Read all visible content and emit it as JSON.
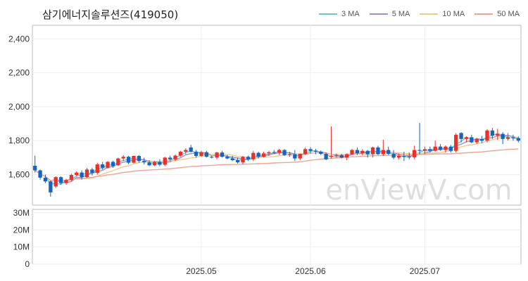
{
  "chart_data": {
    "type": "candlestick",
    "title": "삼기에너지솔루션즈(419050)",
    "watermark": "enViewV.com",
    "legend_placement": "top-right",
    "grid": true,
    "colors": {
      "up": "#e8312d",
      "down": "#1565c0",
      "volume": "#3b3f63",
      "grid": "#eeeeee",
      "axis": "#bbbbbb"
    },
    "ma_series": [
      {
        "name": "3 MA",
        "color": "#66c9c4"
      },
      {
        "name": "5 MA",
        "color": "#a98bc2"
      },
      {
        "name": "10 MA",
        "color": "#f2c98c"
      },
      {
        "name": "50 MA",
        "color": "#f0a296"
      }
    ],
    "price_axis": {
      "ylim": [
        1420,
        2480
      ],
      "ticks": [
        1600,
        1800,
        2000,
        2200,
        2400
      ],
      "tick_labels": [
        "1,600",
        "1,800",
        "2,000",
        "2,200",
        "2,400"
      ]
    },
    "volume_axis": {
      "ylim": [
        0,
        32000000
      ],
      "ticks": [
        0,
        10000000,
        20000000,
        30000000
      ],
      "tick_labels": [
        "0",
        "10M",
        "20M",
        "30M"
      ]
    },
    "x_ticks": [
      {
        "index": 32,
        "label": "2025.05"
      },
      {
        "index": 53,
        "label": "2025.06"
      },
      {
        "index": 75,
        "label": "2025.07"
      }
    ],
    "num_candles": 94,
    "candles": [
      [
        1652,
        1712,
        1612,
        1625
      ],
      [
        1625,
        1630,
        1570,
        1582
      ],
      [
        1582,
        1600,
        1550,
        1560
      ],
      [
        1560,
        1565,
        1470,
        1495
      ],
      [
        1530,
        1590,
        1520,
        1585
      ],
      [
        1585,
        1590,
        1540,
        1550
      ],
      [
        1550,
        1575,
        1540,
        1568
      ],
      [
        1568,
        1605,
        1560,
        1598
      ],
      [
        1598,
        1620,
        1590,
        1612
      ],
      [
        1612,
        1625,
        1570,
        1585
      ],
      [
        1585,
        1640,
        1580,
        1630
      ],
      [
        1630,
        1640,
        1595,
        1610
      ],
      [
        1610,
        1670,
        1600,
        1660
      ],
      [
        1660,
        1675,
        1630,
        1640
      ],
      [
        1640,
        1680,
        1635,
        1675
      ],
      [
        1675,
        1682,
        1640,
        1650
      ],
      [
        1655,
        1700,
        1650,
        1695
      ],
      [
        1695,
        1715,
        1680,
        1705
      ],
      [
        1705,
        1710,
        1660,
        1670
      ],
      [
        1670,
        1712,
        1665,
        1710
      ],
      [
        1710,
        1715,
        1670,
        1680
      ],
      [
        1680,
        1700,
        1660,
        1672
      ],
      [
        1672,
        1685,
        1650,
        1655
      ],
      [
        1655,
        1680,
        1650,
        1675
      ],
      [
        1675,
        1690,
        1650,
        1658
      ],
      [
        1658,
        1705,
        1650,
        1700
      ],
      [
        1700,
        1712,
        1680,
        1690
      ],
      [
        1690,
        1718,
        1680,
        1712
      ],
      [
        1712,
        1740,
        1705,
        1735
      ],
      [
        1735,
        1755,
        1720,
        1745
      ],
      [
        1760,
        1775,
        1730,
        1735
      ],
      [
        1735,
        1745,
        1700,
        1710
      ],
      [
        1710,
        1740,
        1705,
        1732
      ],
      [
        1732,
        1740,
        1700,
        1705
      ],
      [
        1705,
        1712,
        1695,
        1700
      ],
      [
        1700,
        1735,
        1690,
        1730
      ],
      [
        1730,
        1740,
        1700,
        1705
      ],
      [
        1705,
        1715,
        1690,
        1695
      ],
      [
        1695,
        1710,
        1680,
        1685
      ],
      [
        1685,
        1700,
        1665,
        1672
      ],
      [
        1672,
        1710,
        1660,
        1705
      ],
      [
        1705,
        1712,
        1680,
        1690
      ],
      [
        1690,
        1740,
        1680,
        1728
      ],
      [
        1728,
        1735,
        1695,
        1705
      ],
      [
        1705,
        1735,
        1700,
        1725
      ],
      [
        1725,
        1740,
        1710,
        1732
      ],
      [
        1732,
        1745,
        1720,
        1730
      ],
      [
        1730,
        1752,
        1715,
        1745
      ],
      [
        1745,
        1750,
        1710,
        1715
      ],
      [
        1715,
        1735,
        1705,
        1720
      ],
      [
        1720,
        1745,
        1680,
        1695
      ],
      [
        1695,
        1725,
        1685,
        1722
      ],
      [
        1722,
        1760,
        1715,
        1750
      ],
      [
        1750,
        1762,
        1725,
        1740
      ],
      [
        1740,
        1752,
        1720,
        1735
      ],
      [
        1735,
        1742,
        1715,
        1722
      ],
      [
        1722,
        1730,
        1685,
        1690
      ],
      [
        1705,
        1885,
        1695,
        1710
      ],
      [
        1710,
        1725,
        1700,
        1715
      ],
      [
        1715,
        1722,
        1695,
        1700
      ],
      [
        1700,
        1725,
        1685,
        1720
      ],
      [
        1720,
        1752,
        1715,
        1745
      ],
      [
        1745,
        1760,
        1715,
        1725
      ],
      [
        1725,
        1750,
        1715,
        1740
      ],
      [
        1740,
        1745,
        1700,
        1720
      ],
      [
        1720,
        1765,
        1700,
        1760
      ],
      [
        1760,
        1770,
        1715,
        1720
      ],
      [
        1720,
        1805,
        1710,
        1745
      ],
      [
        1745,
        1765,
        1715,
        1722
      ],
      [
        1722,
        1745,
        1690,
        1700
      ],
      [
        1700,
        1725,
        1690,
        1710
      ],
      [
        1710,
        1735,
        1680,
        1705
      ],
      [
        1705,
        1730,
        1690,
        1702
      ],
      [
        1702,
        1770,
        1690,
        1745
      ],
      [
        1745,
        1905,
        1720,
        1740
      ],
      [
        1740,
        1765,
        1720,
        1750
      ],
      [
        1750,
        1765,
        1730,
        1740
      ],
      [
        1740,
        1800,
        1735,
        1765
      ],
      [
        1765,
        1780,
        1740,
        1745
      ],
      [
        1745,
        1772,
        1730,
        1765
      ],
      [
        1765,
        1775,
        1730,
        1740
      ],
      [
        1740,
        1845,
        1730,
        1835
      ],
      [
        1845,
        1850,
        1790,
        1810
      ],
      [
        1810,
        1825,
        1790,
        1820
      ],
      [
        1820,
        1835,
        1785,
        1790
      ],
      [
        1790,
        1815,
        1780,
        1810
      ],
      [
        1810,
        1828,
        1785,
        1800
      ],
      [
        1800,
        1868,
        1790,
        1860
      ],
      [
        1860,
        1875,
        1810,
        1830
      ],
      [
        1830,
        1870,
        1805,
        1840
      ],
      [
        1840,
        1850,
        1780,
        1810
      ],
      [
        1810,
        1845,
        1800,
        1820
      ],
      [
        1820,
        1835,
        1800,
        1815
      ],
      [
        1815,
        1825,
        1790,
        1800
      ]
    ],
    "volumes": []
  }
}
